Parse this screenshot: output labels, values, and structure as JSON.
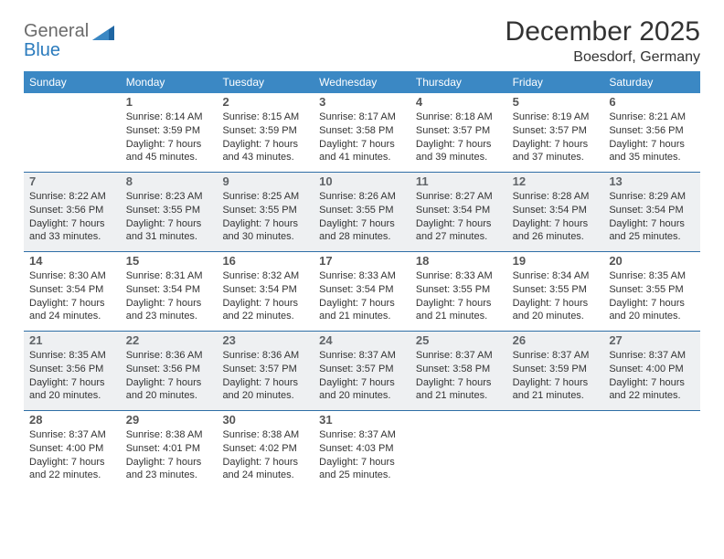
{
  "brand": {
    "word1": "General",
    "word2": "Blue"
  },
  "title": "December 2025",
  "location": "Boesdorf, Germany",
  "colors": {
    "dow_bg": "#3b88c4",
    "dow_text": "#ffffff",
    "week_divider": "#2f6fa6",
    "shade_bg": "#eef0f2",
    "text": "#333333",
    "logo_gray": "#6b6b6b",
    "logo_blue": "#2b7bbd"
  },
  "dow": [
    "Sunday",
    "Monday",
    "Tuesday",
    "Wednesday",
    "Thursday",
    "Friday",
    "Saturday"
  ],
  "weeks": [
    {
      "shade": false,
      "cells": [
        {
          "day": "",
          "sunrise": "",
          "sunset": "",
          "daylight": ""
        },
        {
          "day": "1",
          "sunrise": "Sunrise: 8:14 AM",
          "sunset": "Sunset: 3:59 PM",
          "daylight": "Daylight: 7 hours and 45 minutes."
        },
        {
          "day": "2",
          "sunrise": "Sunrise: 8:15 AM",
          "sunset": "Sunset: 3:59 PM",
          "daylight": "Daylight: 7 hours and 43 minutes."
        },
        {
          "day": "3",
          "sunrise": "Sunrise: 8:17 AM",
          "sunset": "Sunset: 3:58 PM",
          "daylight": "Daylight: 7 hours and 41 minutes."
        },
        {
          "day": "4",
          "sunrise": "Sunrise: 8:18 AM",
          "sunset": "Sunset: 3:57 PM",
          "daylight": "Daylight: 7 hours and 39 minutes."
        },
        {
          "day": "5",
          "sunrise": "Sunrise: 8:19 AM",
          "sunset": "Sunset: 3:57 PM",
          "daylight": "Daylight: 7 hours and 37 minutes."
        },
        {
          "day": "6",
          "sunrise": "Sunrise: 8:21 AM",
          "sunset": "Sunset: 3:56 PM",
          "daylight": "Daylight: 7 hours and 35 minutes."
        }
      ]
    },
    {
      "shade": true,
      "cells": [
        {
          "day": "7",
          "sunrise": "Sunrise: 8:22 AM",
          "sunset": "Sunset: 3:56 PM",
          "daylight": "Daylight: 7 hours and 33 minutes."
        },
        {
          "day": "8",
          "sunrise": "Sunrise: 8:23 AM",
          "sunset": "Sunset: 3:55 PM",
          "daylight": "Daylight: 7 hours and 31 minutes."
        },
        {
          "day": "9",
          "sunrise": "Sunrise: 8:25 AM",
          "sunset": "Sunset: 3:55 PM",
          "daylight": "Daylight: 7 hours and 30 minutes."
        },
        {
          "day": "10",
          "sunrise": "Sunrise: 8:26 AM",
          "sunset": "Sunset: 3:55 PM",
          "daylight": "Daylight: 7 hours and 28 minutes."
        },
        {
          "day": "11",
          "sunrise": "Sunrise: 8:27 AM",
          "sunset": "Sunset: 3:54 PM",
          "daylight": "Daylight: 7 hours and 27 minutes."
        },
        {
          "day": "12",
          "sunrise": "Sunrise: 8:28 AM",
          "sunset": "Sunset: 3:54 PM",
          "daylight": "Daylight: 7 hours and 26 minutes."
        },
        {
          "day": "13",
          "sunrise": "Sunrise: 8:29 AM",
          "sunset": "Sunset: 3:54 PM",
          "daylight": "Daylight: 7 hours and 25 minutes."
        }
      ]
    },
    {
      "shade": false,
      "cells": [
        {
          "day": "14",
          "sunrise": "Sunrise: 8:30 AM",
          "sunset": "Sunset: 3:54 PM",
          "daylight": "Daylight: 7 hours and 24 minutes."
        },
        {
          "day": "15",
          "sunrise": "Sunrise: 8:31 AM",
          "sunset": "Sunset: 3:54 PM",
          "daylight": "Daylight: 7 hours and 23 minutes."
        },
        {
          "day": "16",
          "sunrise": "Sunrise: 8:32 AM",
          "sunset": "Sunset: 3:54 PM",
          "daylight": "Daylight: 7 hours and 22 minutes."
        },
        {
          "day": "17",
          "sunrise": "Sunrise: 8:33 AM",
          "sunset": "Sunset: 3:54 PM",
          "daylight": "Daylight: 7 hours and 21 minutes."
        },
        {
          "day": "18",
          "sunrise": "Sunrise: 8:33 AM",
          "sunset": "Sunset: 3:55 PM",
          "daylight": "Daylight: 7 hours and 21 minutes."
        },
        {
          "day": "19",
          "sunrise": "Sunrise: 8:34 AM",
          "sunset": "Sunset: 3:55 PM",
          "daylight": "Daylight: 7 hours and 20 minutes."
        },
        {
          "day": "20",
          "sunrise": "Sunrise: 8:35 AM",
          "sunset": "Sunset: 3:55 PM",
          "daylight": "Daylight: 7 hours and 20 minutes."
        }
      ]
    },
    {
      "shade": true,
      "cells": [
        {
          "day": "21",
          "sunrise": "Sunrise: 8:35 AM",
          "sunset": "Sunset: 3:56 PM",
          "daylight": "Daylight: 7 hours and 20 minutes."
        },
        {
          "day": "22",
          "sunrise": "Sunrise: 8:36 AM",
          "sunset": "Sunset: 3:56 PM",
          "daylight": "Daylight: 7 hours and 20 minutes."
        },
        {
          "day": "23",
          "sunrise": "Sunrise: 8:36 AM",
          "sunset": "Sunset: 3:57 PM",
          "daylight": "Daylight: 7 hours and 20 minutes."
        },
        {
          "day": "24",
          "sunrise": "Sunrise: 8:37 AM",
          "sunset": "Sunset: 3:57 PM",
          "daylight": "Daylight: 7 hours and 20 minutes."
        },
        {
          "day": "25",
          "sunrise": "Sunrise: 8:37 AM",
          "sunset": "Sunset: 3:58 PM",
          "daylight": "Daylight: 7 hours and 21 minutes."
        },
        {
          "day": "26",
          "sunrise": "Sunrise: 8:37 AM",
          "sunset": "Sunset: 3:59 PM",
          "daylight": "Daylight: 7 hours and 21 minutes."
        },
        {
          "day": "27",
          "sunrise": "Sunrise: 8:37 AM",
          "sunset": "Sunset: 4:00 PM",
          "daylight": "Daylight: 7 hours and 22 minutes."
        }
      ]
    },
    {
      "shade": false,
      "cells": [
        {
          "day": "28",
          "sunrise": "Sunrise: 8:37 AM",
          "sunset": "Sunset: 4:00 PM",
          "daylight": "Daylight: 7 hours and 22 minutes."
        },
        {
          "day": "29",
          "sunrise": "Sunrise: 8:38 AM",
          "sunset": "Sunset: 4:01 PM",
          "daylight": "Daylight: 7 hours and 23 minutes."
        },
        {
          "day": "30",
          "sunrise": "Sunrise: 8:38 AM",
          "sunset": "Sunset: 4:02 PM",
          "daylight": "Daylight: 7 hours and 24 minutes."
        },
        {
          "day": "31",
          "sunrise": "Sunrise: 8:37 AM",
          "sunset": "Sunset: 4:03 PM",
          "daylight": "Daylight: 7 hours and 25 minutes."
        },
        {
          "day": "",
          "sunrise": "",
          "sunset": "",
          "daylight": ""
        },
        {
          "day": "",
          "sunrise": "",
          "sunset": "",
          "daylight": ""
        },
        {
          "day": "",
          "sunrise": "",
          "sunset": "",
          "daylight": ""
        }
      ]
    }
  ]
}
